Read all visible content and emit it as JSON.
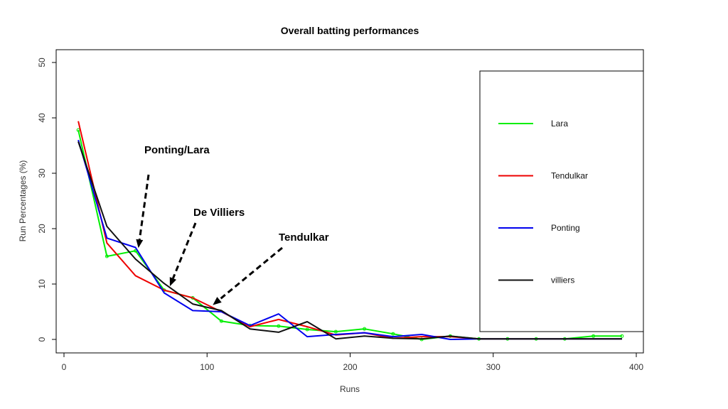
{
  "chart_data": {
    "type": "line",
    "title": "Overall batting performances",
    "xlabel": "Runs",
    "ylabel": "Run Percentages (%)",
    "xlim": [
      0,
      400
    ],
    "ylim": [
      0,
      50
    ],
    "xticks": [
      0,
      100,
      200,
      300,
      400
    ],
    "yticks": [
      0,
      10,
      20,
      30,
      40,
      50
    ],
    "x": [
      10,
      30,
      50,
      70,
      90,
      110,
      130,
      150,
      170,
      190,
      210,
      230,
      250,
      270,
      290,
      310,
      330,
      350,
      370,
      390
    ],
    "series": [
      {
        "name": "Lara",
        "color": "#00ee00",
        "markers": true,
        "values": [
          37.8,
          15.0,
          16.0,
          8.9,
          7.5,
          3.3,
          2.5,
          2.4,
          1.8,
          1.4,
          1.9,
          1.0,
          0.0,
          0.6,
          0.1,
          0.1,
          0.1,
          0.1,
          0.6,
          0.6
        ]
      },
      {
        "name": "Tendulkar",
        "color": "#ee0000",
        "markers": false,
        "values": [
          39.4,
          17.4,
          11.5,
          8.9,
          7.5,
          5.0,
          2.3,
          3.6,
          2.3,
          0.8,
          1.2,
          0.2,
          0.5,
          0.5,
          0.1,
          0.1,
          0.1,
          0.1,
          0.1,
          0.1
        ]
      },
      {
        "name": "Ponting",
        "color": "#0000ee",
        "markers": false,
        "values": [
          36.0,
          18.3,
          16.6,
          8.4,
          5.2,
          5.0,
          2.5,
          4.6,
          0.5,
          0.9,
          1.2,
          0.5,
          0.9,
          0.0,
          0.1,
          0.1,
          0.1,
          0.1,
          0.1,
          0.1
        ]
      },
      {
        "name": "villiers",
        "color": "#111111",
        "markers": false,
        "values": [
          35.7,
          20.4,
          14.5,
          10.1,
          6.4,
          5.2,
          1.9,
          1.3,
          3.2,
          0.1,
          0.6,
          0.2,
          0.1,
          0.6,
          0.1,
          0.1,
          0.1,
          0.1,
          0.1,
          0.1
        ]
      }
    ],
    "legend": {
      "position": "right",
      "entries": [
        "Lara",
        "Tendulkar",
        "Ponting",
        "villiers"
      ]
    },
    "annotations": [
      {
        "text": "Ponting/Lara",
        "points_to": {
          "x": 52,
          "y": 16.5
        }
      },
      {
        "text": "De Villiers",
        "points_to": {
          "x": 74,
          "y": 9.6
        }
      },
      {
        "text": "Tendulkar",
        "points_to": {
          "x": 104,
          "y": 6.2
        }
      }
    ],
    "grid": false
  }
}
